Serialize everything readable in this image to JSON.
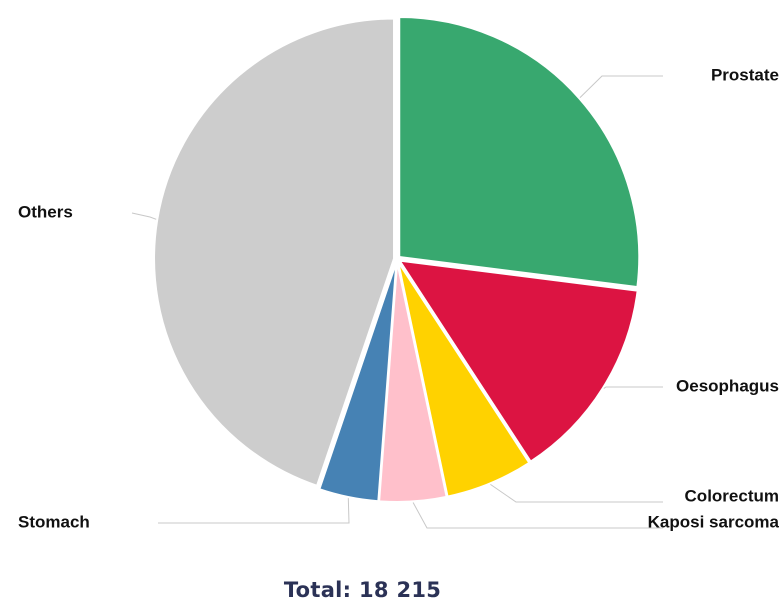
{
  "chart_data": {
    "type": "pie",
    "title": "",
    "categories": [
      "Prostate",
      "Oesophagus",
      "Colorectum",
      "Kaposi sarcoma",
      "Stomach",
      "Others"
    ],
    "values": [
      27.0,
      13.8,
      5.9,
      4.5,
      4.0,
      44.8
    ],
    "unit": "%",
    "colors": [
      "#38a86f",
      "#dc1442",
      "#ffd200",
      "#ffc0cb",
      "#4682b4",
      "#cdcdcd"
    ],
    "total_label": "Total:",
    "total_value": "18 215",
    "start_angle": "12 o'clock",
    "direction": "clockwise",
    "legend": "none (leader-line labels)"
  }
}
